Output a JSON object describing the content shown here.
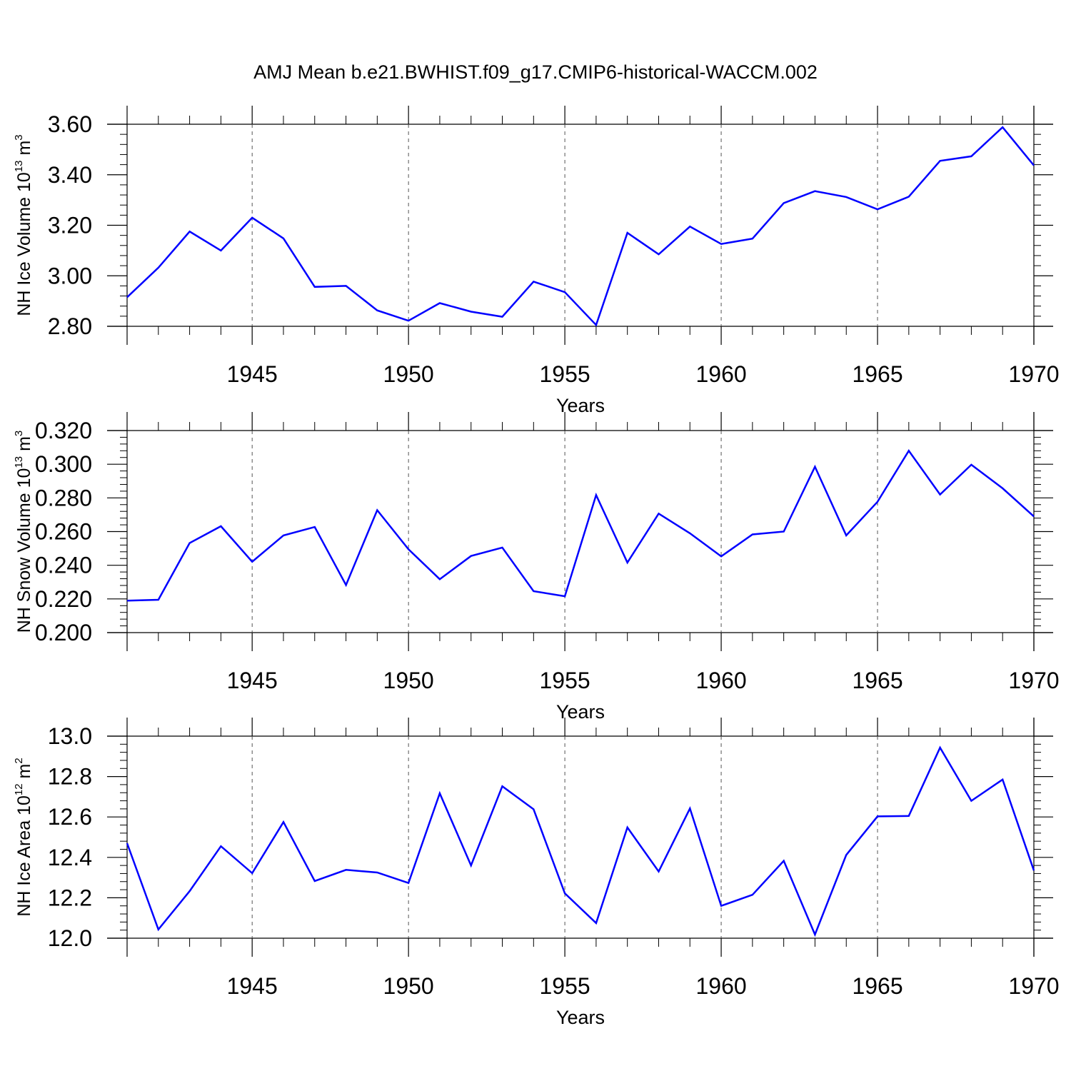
{
  "title": "AMJ Mean b.e21.BWHIST.f09_g17.CMIP6-historical-WACCM.002",
  "colors": {
    "line": "#0000ff",
    "axis": "#000000",
    "grid": "#555555"
  },
  "chart_data": [
    {
      "type": "line",
      "ylabel_main": "NH Ice Volume 10",
      "ylabel_exp": "13",
      "ylabel_unit": " m",
      "ylabel_unit_exp": "3",
      "xlabel": "Years",
      "xlim": [
        1941,
        1970
      ],
      "ylim": [
        2.8,
        3.6
      ],
      "yticks": [
        2.8,
        3.0,
        3.2,
        3.4,
        3.6
      ],
      "ytick_labels": [
        "2.80",
        "3.00",
        "3.20",
        "3.40",
        "3.60"
      ],
      "xticks": [
        1945,
        1950,
        1955,
        1960,
        1965,
        1970
      ],
      "xtick_labels": [
        "1945",
        "1950",
        "1955",
        "1960",
        "1965",
        "1970"
      ],
      "grid": "vertical dashed at major x ticks",
      "series": [
        {
          "x": [
            1941,
            1942,
            1943,
            1944,
            1945,
            1946,
            1947,
            1948,
            1949,
            1950,
            1951,
            1952,
            1953,
            1954,
            1955,
            1956,
            1957,
            1958,
            1959,
            1960,
            1961,
            1962,
            1963,
            1964,
            1965,
            1966,
            1967,
            1968,
            1969,
            1970
          ],
          "values": [
            2.915,
            3.032,
            3.175,
            3.1,
            3.23,
            3.148,
            2.956,
            2.96,
            2.863,
            2.822,
            2.892,
            2.858,
            2.838,
            2.977,
            2.935,
            2.805,
            3.17,
            3.085,
            3.195,
            3.126,
            3.147,
            3.288,
            3.335,
            3.312,
            3.263,
            3.313,
            3.455,
            3.473,
            3.588,
            3.437
          ]
        }
      ]
    },
    {
      "type": "line",
      "ylabel_main": "NH Snow Volume 10",
      "ylabel_exp": "13",
      "ylabel_unit": " m",
      "ylabel_unit_exp": "3",
      "xlabel": "Years",
      "xlim": [
        1941,
        1970
      ],
      "ylim": [
        0.2,
        0.32
      ],
      "yticks": [
        0.2,
        0.22,
        0.24,
        0.26,
        0.28,
        0.3,
        0.32
      ],
      "ytick_labels": [
        "0.200",
        "0.220",
        "0.240",
        "0.260",
        "0.280",
        "0.300",
        "0.320"
      ],
      "xticks": [
        1945,
        1950,
        1955,
        1960,
        1965,
        1970
      ],
      "xtick_labels": [
        "1945",
        "1950",
        "1955",
        "1960",
        "1965",
        "1970"
      ],
      "grid": "vertical dashed at major x ticks",
      "series": [
        {
          "x": [
            1941,
            1942,
            1943,
            1944,
            1945,
            1946,
            1947,
            1948,
            1949,
            1950,
            1951,
            1952,
            1953,
            1954,
            1955,
            1956,
            1957,
            1958,
            1959,
            1960,
            1961,
            1962,
            1963,
            1964,
            1965,
            1966,
            1967,
            1968,
            1969,
            1970
          ],
          "values": [
            0.219,
            0.2195,
            0.2532,
            0.2632,
            0.2421,
            0.2577,
            0.2627,
            0.2283,
            0.2727,
            0.2495,
            0.2317,
            0.2455,
            0.2505,
            0.2246,
            0.2216,
            0.2817,
            0.2416,
            0.2707,
            0.259,
            0.2453,
            0.2583,
            0.26,
            0.2985,
            0.2577,
            0.2777,
            0.308,
            0.282,
            0.2997,
            0.2857,
            0.269
          ]
        }
      ]
    },
    {
      "type": "line",
      "ylabel_main": "NH Ice Area 10",
      "ylabel_exp": "12",
      "ylabel_unit": " m",
      "ylabel_unit_exp": "2",
      "xlabel": "Years",
      "xlim": [
        1941,
        1970
      ],
      "ylim": [
        12.0,
        13.0
      ],
      "yticks": [
        12.0,
        12.2,
        12.4,
        12.6,
        12.8,
        13.0
      ],
      "ytick_labels": [
        "12.0",
        "12.2",
        "12.4",
        "12.6",
        "12.8",
        "13.0"
      ],
      "xticks": [
        1945,
        1950,
        1955,
        1960,
        1965,
        1970
      ],
      "xtick_labels": [
        "1945",
        "1950",
        "1955",
        "1960",
        "1965",
        "1970"
      ],
      "grid": "vertical dashed at major x ticks",
      "series": [
        {
          "x": [
            1941,
            1942,
            1943,
            1944,
            1945,
            1946,
            1947,
            1948,
            1949,
            1950,
            1951,
            1952,
            1953,
            1954,
            1955,
            1956,
            1957,
            1958,
            1959,
            1960,
            1961,
            1962,
            1963,
            1964,
            1965,
            1966,
            1967,
            1968,
            1969,
            1970
          ],
          "values": [
            12.47,
            12.043,
            12.233,
            12.455,
            12.322,
            12.575,
            12.283,
            12.338,
            12.325,
            12.273,
            12.717,
            12.36,
            12.752,
            12.638,
            12.222,
            12.075,
            12.548,
            12.33,
            12.642,
            12.16,
            12.215,
            12.383,
            12.018,
            12.412,
            12.603,
            12.605,
            12.943,
            12.68,
            12.785,
            12.335
          ]
        }
      ]
    }
  ]
}
